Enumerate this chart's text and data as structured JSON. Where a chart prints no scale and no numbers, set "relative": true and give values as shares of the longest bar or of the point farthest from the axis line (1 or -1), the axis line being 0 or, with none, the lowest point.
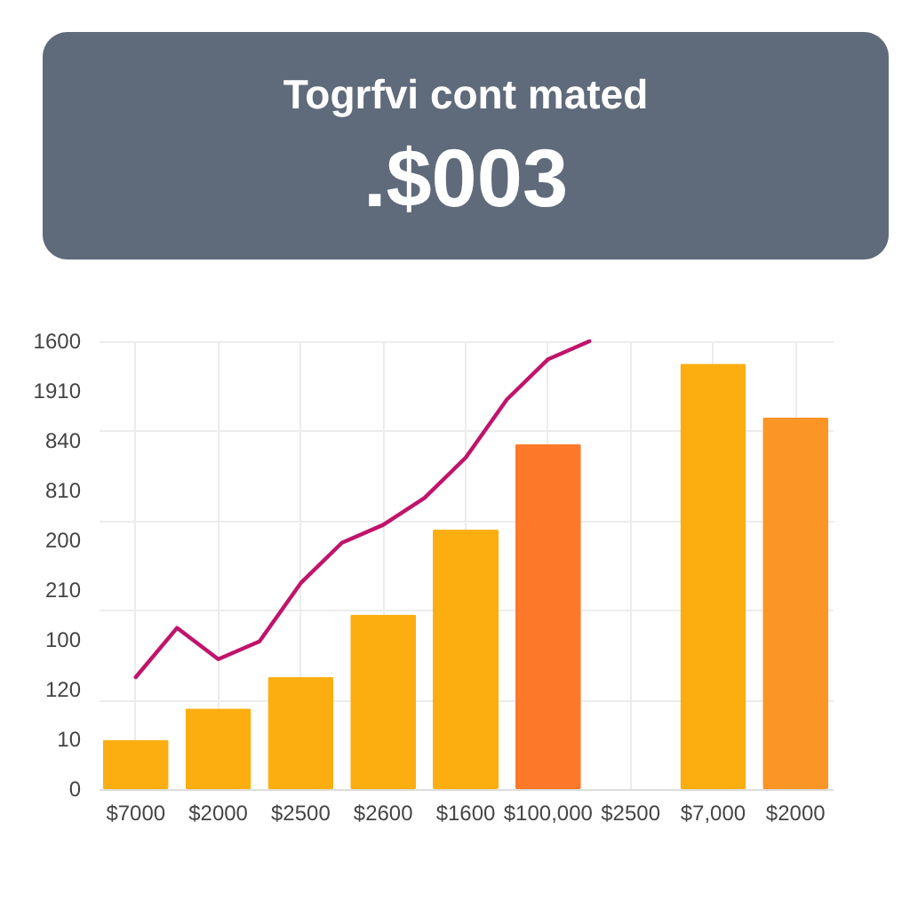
{
  "chart_data": {
    "type": "bar",
    "title": "Togrfvi cont mated",
    "subtitle": ".$003",
    "relative": true,
    "categories": [
      "$7000",
      null,
      "$2000",
      null,
      "$2500",
      null,
      "$2600",
      null,
      "$1600",
      null,
      "$100,000",
      null,
      "$2500",
      null,
      "$7,000",
      null,
      "$2000"
    ],
    "series": [
      {
        "colors": [
          "#fcae11",
          null,
          "#fcae11",
          null,
          "#fcae11",
          null,
          "#fcae11",
          null,
          "#fcae11",
          null,
          "#fd7829",
          null,
          null,
          null,
          "#fcae11",
          null,
          "#fb9526"
        ],
        "values": [
          0.11,
          null,
          0.18,
          null,
          0.25,
          null,
          0.39,
          null,
          0.58,
          null,
          0.77,
          null,
          null,
          null,
          0.95,
          null,
          0.83
        ]
      },
      {
        "type": "line",
        "color": "#c0146b",
        "values": [
          0.25,
          0.36,
          0.29,
          0.33,
          0.46,
          0.55,
          0.59,
          0.65,
          0.74,
          0.87,
          0.96,
          1,
          null,
          null,
          null,
          null,
          null
        ]
      }
    ],
    "annotations": [
      "1600",
      "1910",
      "840",
      "810",
      "200",
      "210",
      "100",
      "120",
      "10",
      "0"
    ],
    "grid": true,
    "marker": "none",
    "line_style": "solid"
  }
}
